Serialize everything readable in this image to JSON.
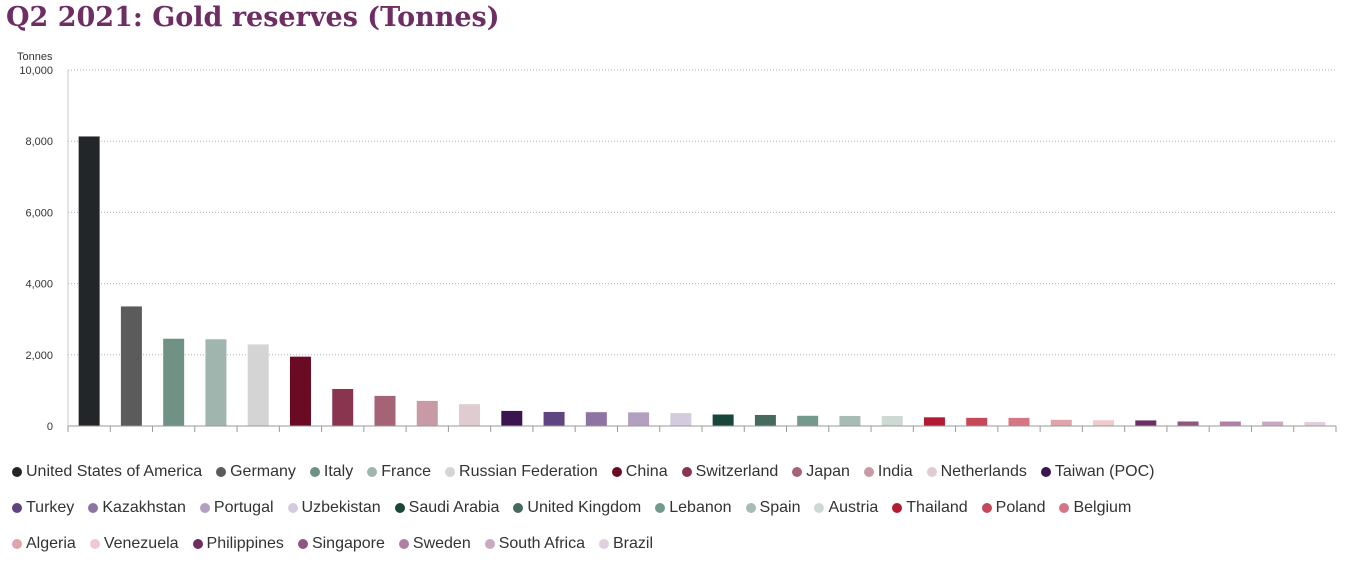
{
  "chart_data": {
    "type": "bar",
    "title": "Q2 2021: Gold reserves (Tonnes)",
    "ylabel": "Tonnes",
    "xlabel": "",
    "ylim": [
      0,
      10000
    ],
    "yticks": [
      "10,000",
      "8,000",
      "6,000",
      "4,000",
      "2,000",
      "0"
    ],
    "ytick_values": [
      10000,
      8000,
      6000,
      4000,
      2000,
      0
    ],
    "grid": true,
    "legend_position": "bottom",
    "categories": [
      "United States of America",
      "Germany",
      "Italy",
      "France",
      "Russian Federation",
      "China",
      "Switzerland",
      "Japan",
      "India",
      "Netherlands",
      "Taiwan (POC)",
      "Turkey",
      "Kazakhstan",
      "Portugal",
      "Uzbekistan",
      "Saudi Arabia",
      "United Kingdom",
      "Lebanon",
      "Spain",
      "Austria",
      "Thailand",
      "Poland",
      "Belgium",
      "Algeria",
      "Venezuela",
      "Philippines",
      "Singapore",
      "Sweden",
      "South Africa",
      "Brazil"
    ],
    "values": [
      8133,
      3359,
      2452,
      2436,
      2292,
      1948,
      1040,
      846,
      705,
      612,
      424,
      395,
      388,
      383,
      363,
      323,
      310,
      287,
      282,
      280,
      244,
      229,
      227,
      174,
      161,
      157,
      127,
      126,
      125,
      114
    ],
    "colors": [
      "#232629",
      "#5b5b5b",
      "#6f9284",
      "#9fb5ad",
      "#d4d4d4",
      "#6b0a23",
      "#8a3550",
      "#a56376",
      "#c79aa5",
      "#e0cbd1",
      "#3a1550",
      "#5e4480",
      "#8d74a2",
      "#b3a0c0",
      "#d5cbdf",
      "#18463a",
      "#466a5c",
      "#739a8c",
      "#a6bcb4",
      "#ced9d4",
      "#b21c32",
      "#c54859",
      "#d47683",
      "#e0a4ab",
      "#eec9cd",
      "#6e2e63",
      "#91557f",
      "#b17fa6",
      "#c9a8c2",
      "#e0d0de"
    ]
  },
  "legend_rows": [
    11,
    12,
    7
  ]
}
